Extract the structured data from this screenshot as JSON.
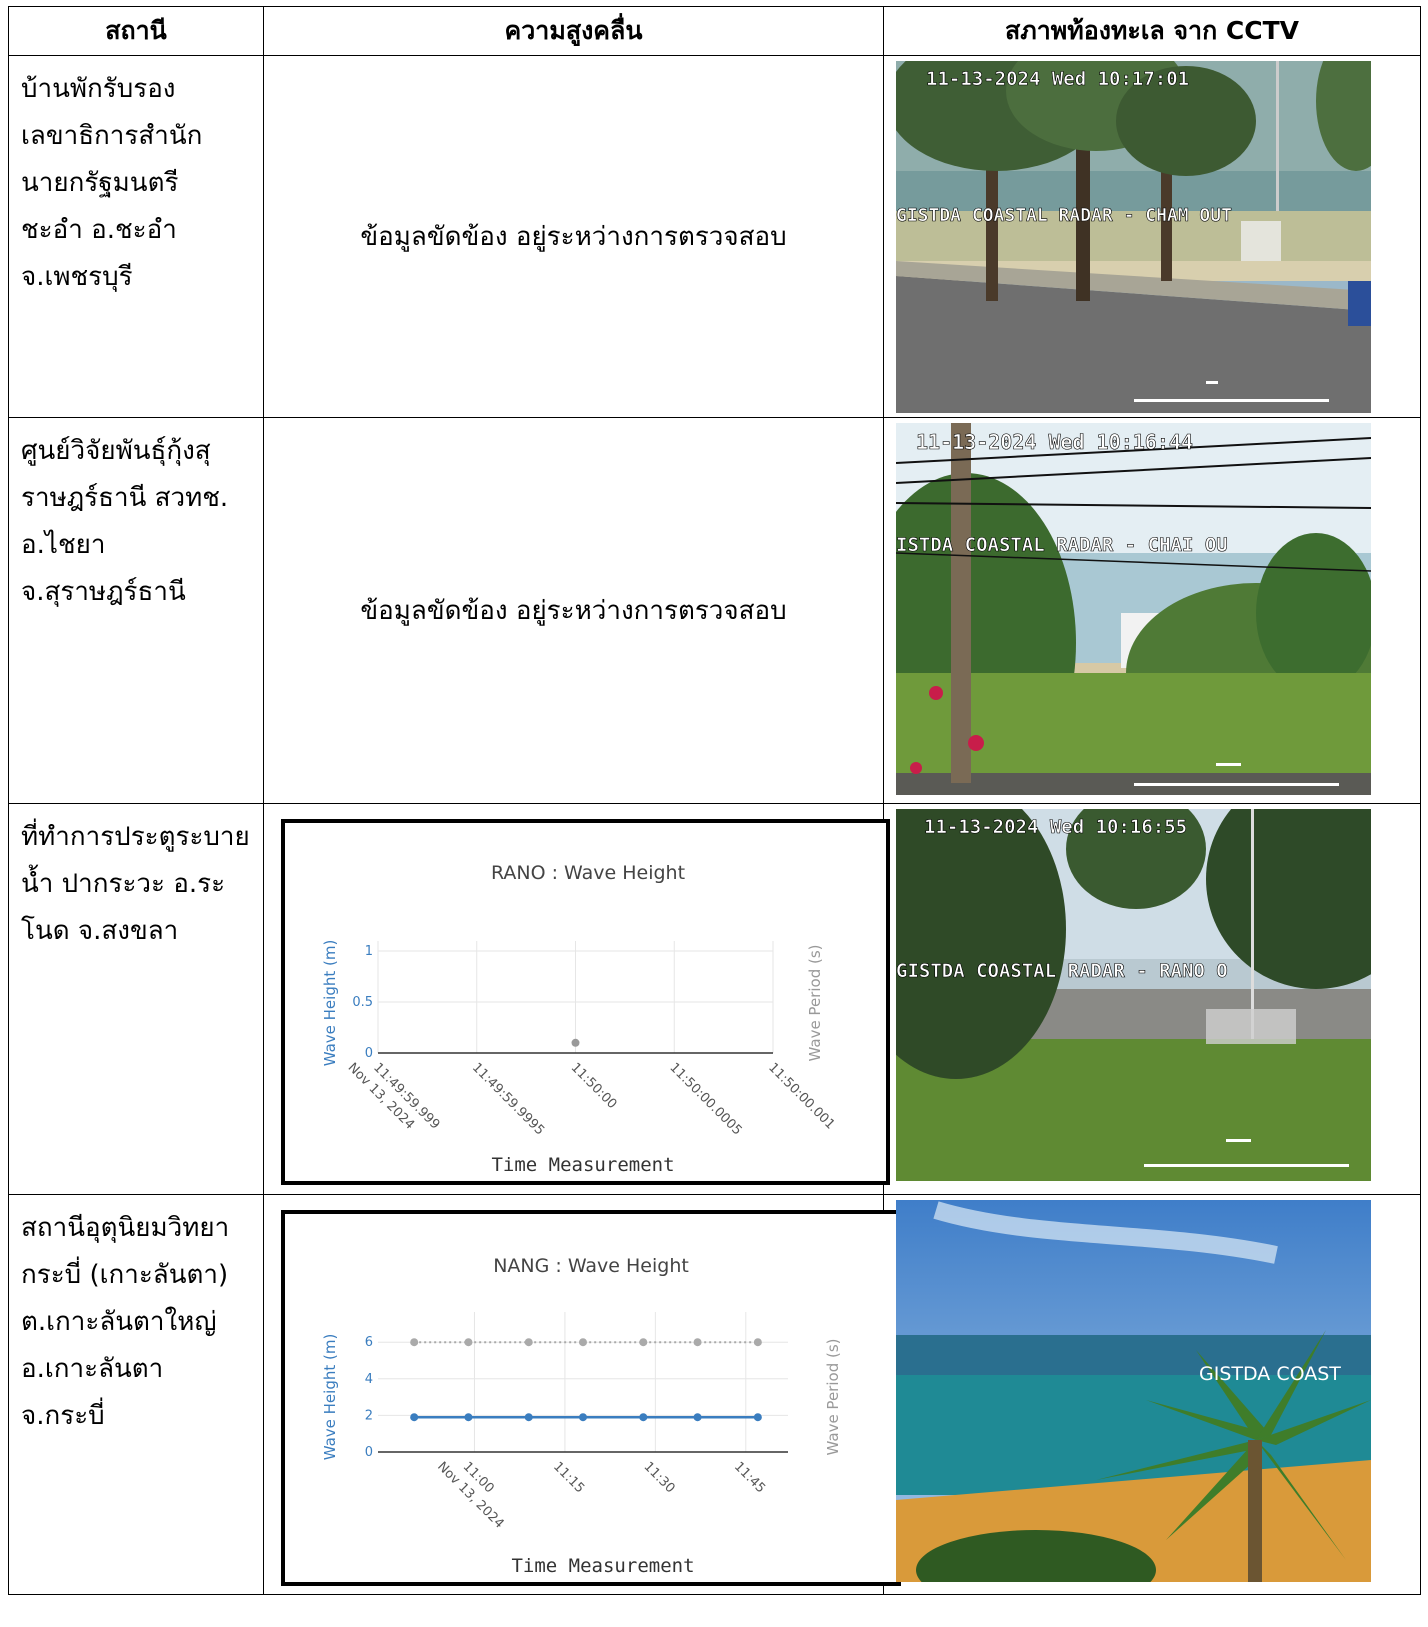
{
  "header": {
    "station": "สถานี",
    "wave_height": "ความสูงคลื่น",
    "sea_cctv": "สภาพท้องทะเล จาก CCTV"
  },
  "rows": [
    {
      "station": "บ้านพักรับรอง\nเลขาธิการสำนัก\nนายกรัฐมนตรี\nชะอำ อ.ชะอำ\nจ.เพชรบุรี",
      "wave_status": "ข้อมูลขัดข้อง อยู่ระหว่างการตรวจสอบ",
      "cctv": {
        "timestamp": "11-13-2024 Wed 10:17:01",
        "overlay": "GISTDA COASTAL RADAR - CHAM OUT"
      }
    },
    {
      "station": "ศูนย์วิจัยพันธุ์กุ้งสุ\nราษฎร์ธานี สวทช.\nอ.ไชยา\nจ.สุราษฎร์ธานี",
      "wave_status": "ข้อมูลขัดข้อง อยู่ระหว่างการตรวจสอบ",
      "cctv": {
        "timestamp": "11-13-2024 Wed 10:16:44",
        "overlay": "ISTDA COASTAL RADAR - CHAI OU"
      }
    },
    {
      "station": "ที่ทำการประตูระบาย\nน้ำ ปากระวะ อ.ระ\nโนด จ.สงขลา",
      "cctv": {
        "timestamp": "11-13-2024 Wed 10:16:55",
        "overlay": "GISTDA COASTAL RADAR - RANO O"
      }
    },
    {
      "station": "สถานีอุตุนิยมวิทยา\nกระบี่ (เกาะลันตา)\nต.เกาะลันตาใหญ่\nอ.เกาะลันตา\nจ.กระบี่",
      "cctv": {
        "overlay": "GISTDA COAST"
      }
    }
  ],
  "chart_data": [
    {
      "type": "scatter",
      "title": "RANO : Wave Height",
      "xlabel": "Time Measurement",
      "ylabel": "Wave Height (m)",
      "y2label": "Wave Period (s)",
      "ylim": [
        0,
        1
      ],
      "yticks": [
        "0",
        "0.5",
        "1"
      ],
      "xticks": [
        "11:49:59.999\nNov 13, 2024",
        "11:49:59.9995",
        "11:50:00",
        "11:50:00.0005",
        "11:50:00.001"
      ],
      "series": [
        {
          "values": [
            {
              "x": "11:50:00",
              "y": 0.1
            }
          ],
          "color": "#999999"
        }
      ],
      "grid": true
    },
    {
      "type": "line",
      "title": "NANG : Wave Height",
      "xlabel": "Time Measurement",
      "ylabel": "Wave Height (m)",
      "y2label": "Wave Period (s)",
      "ylim": [
        0,
        7
      ],
      "yticks": [
        "0",
        "2",
        "4",
        "6"
      ],
      "xticks": [
        "11:00\nNov 13, 2024",
        "11:15",
        "11:30",
        "11:45"
      ],
      "x": [
        "10:50",
        "10:59",
        "11:09",
        "11:18",
        "11:28",
        "11:37",
        "11:47"
      ],
      "series": [
        {
          "axis": "left",
          "values": [
            1.9,
            1.9,
            1.9,
            1.9,
            1.9,
            1.9,
            1.9
          ],
          "color": "#3a7dbf",
          "style": "solid"
        },
        {
          "axis": "right",
          "values": [
            6,
            6,
            6,
            6,
            6,
            6,
            6
          ],
          "color": "#aaaaaa",
          "style": "dotted"
        }
      ],
      "grid": true
    }
  ]
}
